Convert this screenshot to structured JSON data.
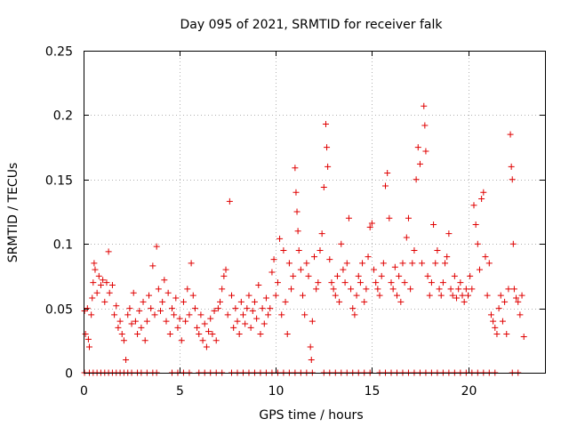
{
  "chart_data": {
    "type": "scatter",
    "title": "Day 095 of 2021, SRMTID for receiver falk",
    "xlabel": "GPS time / hours",
    "ylabel": "SRMTID / TECUs",
    "xlim": [
      0,
      24
    ],
    "ylim": [
      0,
      0.25
    ],
    "x_ticks": [
      0,
      5,
      10,
      15,
      20
    ],
    "x_tick_labels": [
      "0",
      "5",
      "10",
      "15",
      "20"
    ],
    "y_ticks": [
      0,
      0.05,
      0.1,
      0.15,
      0.2,
      0.25
    ],
    "y_tick_labels": [
      "0",
      "0.05",
      "0.1",
      "0.15",
      "0.2",
      "0.25"
    ],
    "grid": true,
    "marker": "+",
    "marker_color": "#e00000",
    "series": [
      {
        "name": "SRMTID",
        "color": "#e00000",
        "points": [
          [
            0.05,
            0.048
          ],
          [
            0.1,
            0.03
          ],
          [
            0.2,
            0.05
          ],
          [
            0.25,
            0.026
          ],
          [
            0.3,
            0.02
          ],
          [
            0.4,
            0.045
          ],
          [
            0.45,
            0.058
          ],
          [
            0.5,
            0.07
          ],
          [
            0.55,
            0.085
          ],
          [
            0.6,
            0.08
          ],
          [
            0.7,
            0.062
          ],
          [
            0.8,
            0.075
          ],
          [
            0.9,
            0.068
          ],
          [
            1.0,
            0.072
          ],
          [
            1.1,
            0.055
          ],
          [
            1.2,
            0.07
          ],
          [
            1.3,
            0.094
          ],
          [
            1.35,
            0.062
          ],
          [
            1.5,
            0.068
          ],
          [
            1.6,
            0.045
          ],
          [
            1.7,
            0.052
          ],
          [
            1.8,
            0.035
          ],
          [
            1.9,
            0.04
          ],
          [
            2.0,
            0.03
          ],
          [
            2.1,
            0.025
          ],
          [
            2.2,
            0.01
          ],
          [
            2.3,
            0.045
          ],
          [
            2.4,
            0.05
          ],
          [
            2.5,
            0.038
          ],
          [
            2.6,
            0.062
          ],
          [
            2.7,
            0.04
          ],
          [
            2.8,
            0.03
          ],
          [
            2.9,
            0.048
          ],
          [
            3.0,
            0.035
          ],
          [
            3.1,
            0.055
          ],
          [
            3.2,
            0.025
          ],
          [
            3.3,
            0.04
          ],
          [
            3.4,
            0.06
          ],
          [
            3.5,
            0.05
          ],
          [
            3.6,
            0.083
          ],
          [
            3.7,
            0.045
          ],
          [
            3.8,
            0.098
          ],
          [
            3.9,
            0.065
          ],
          [
            4.0,
            0.048
          ],
          [
            4.1,
            0.055
          ],
          [
            4.2,
            0.072
          ],
          [
            4.3,
            0.04
          ],
          [
            4.4,
            0.062
          ],
          [
            4.5,
            0.03
          ],
          [
            4.6,
            0.05
          ],
          [
            4.7,
            0.045
          ],
          [
            4.8,
            0.058
          ],
          [
            4.9,
            0.035
          ],
          [
            5.0,
            0.042
          ],
          [
            5.1,
            0.025
          ],
          [
            5.2,
            0.055
          ],
          [
            5.3,
            0.04
          ],
          [
            5.4,
            0.065
          ],
          [
            5.5,
            0.045
          ],
          [
            5.6,
            0.085
          ],
          [
            5.7,
            0.06
          ],
          [
            5.8,
            0.05
          ],
          [
            5.9,
            0.035
          ],
          [
            6.0,
            0.03
          ],
          [
            6.1,
            0.045
          ],
          [
            6.2,
            0.025
          ],
          [
            6.3,
            0.038
          ],
          [
            6.4,
            0.02
          ],
          [
            6.5,
            0.032
          ],
          [
            6.6,
            0.042
          ],
          [
            6.7,
            0.03
          ],
          [
            6.8,
            0.048
          ],
          [
            6.9,
            0.025
          ],
          [
            7.0,
            0.05
          ],
          [
            7.1,
            0.055
          ],
          [
            7.2,
            0.065
          ],
          [
            7.3,
            0.075
          ],
          [
            7.4,
            0.08
          ],
          [
            7.5,
            0.045
          ],
          [
            7.6,
            0.133
          ],
          [
            7.7,
            0.06
          ],
          [
            7.8,
            0.035
          ],
          [
            7.9,
            0.05
          ],
          [
            8.0,
            0.04
          ],
          [
            8.1,
            0.03
          ],
          [
            8.2,
            0.055
          ],
          [
            8.3,
            0.045
          ],
          [
            8.4,
            0.038
          ],
          [
            8.5,
            0.05
          ],
          [
            8.6,
            0.06
          ],
          [
            8.7,
            0.035
          ],
          [
            8.8,
            0.048
          ],
          [
            8.9,
            0.055
          ],
          [
            9.0,
            0.042
          ],
          [
            9.1,
            0.068
          ],
          [
            9.2,
            0.03
          ],
          [
            9.3,
            0.05
          ],
          [
            9.4,
            0.038
          ],
          [
            9.5,
            0.058
          ],
          [
            9.6,
            0.045
          ],
          [
            9.7,
            0.05
          ],
          [
            9.8,
            0.078
          ],
          [
            9.9,
            0.088
          ],
          [
            10.0,
            0.06
          ],
          [
            10.1,
            0.07
          ],
          [
            10.2,
            0.104
          ],
          [
            10.3,
            0.045
          ],
          [
            10.4,
            0.095
          ],
          [
            10.5,
            0.055
          ],
          [
            10.6,
            0.03
          ],
          [
            10.7,
            0.085
          ],
          [
            10.8,
            0.065
          ],
          [
            10.9,
            0.075
          ],
          [
            11.0,
            0.159
          ],
          [
            11.05,
            0.14
          ],
          [
            11.1,
            0.125
          ],
          [
            11.15,
            0.11
          ],
          [
            11.2,
            0.095
          ],
          [
            11.3,
            0.08
          ],
          [
            11.4,
            0.06
          ],
          [
            11.5,
            0.045
          ],
          [
            11.6,
            0.085
          ],
          [
            11.7,
            0.075
          ],
          [
            11.8,
            0.02
          ],
          [
            11.85,
            0.01
          ],
          [
            11.9,
            0.04
          ],
          [
            12.0,
            0.09
          ],
          [
            12.1,
            0.065
          ],
          [
            12.2,
            0.07
          ],
          [
            12.3,
            0.095
          ],
          [
            12.4,
            0.108
          ],
          [
            12.5,
            0.144
          ],
          [
            12.6,
            0.193
          ],
          [
            12.65,
            0.175
          ],
          [
            12.7,
            0.16
          ],
          [
            12.8,
            0.088
          ],
          [
            12.9,
            0.07
          ],
          [
            13.0,
            0.065
          ],
          [
            13.1,
            0.06
          ],
          [
            13.2,
            0.075
          ],
          [
            13.3,
            0.055
          ],
          [
            13.4,
            0.1
          ],
          [
            13.5,
            0.08
          ],
          [
            13.6,
            0.07
          ],
          [
            13.7,
            0.085
          ],
          [
            13.8,
            0.12
          ],
          [
            13.9,
            0.065
          ],
          [
            14.0,
            0.05
          ],
          [
            14.1,
            0.045
          ],
          [
            14.2,
            0.06
          ],
          [
            14.3,
            0.075
          ],
          [
            14.4,
            0.07
          ],
          [
            14.5,
            0.085
          ],
          [
            14.6,
            0.055
          ],
          [
            14.7,
            0.065
          ],
          [
            14.8,
            0.09
          ],
          [
            14.9,
            0.113
          ],
          [
            15.0,
            0.116
          ],
          [
            15.1,
            0.08
          ],
          [
            15.2,
            0.07
          ],
          [
            15.3,
            0.065
          ],
          [
            15.4,
            0.06
          ],
          [
            15.5,
            0.075
          ],
          [
            15.6,
            0.085
          ],
          [
            15.7,
            0.145
          ],
          [
            15.8,
            0.155
          ],
          [
            15.9,
            0.12
          ],
          [
            16.0,
            0.07
          ],
          [
            16.1,
            0.065
          ],
          [
            16.2,
            0.082
          ],
          [
            16.3,
            0.06
          ],
          [
            16.4,
            0.075
          ],
          [
            16.5,
            0.055
          ],
          [
            16.6,
            0.085
          ],
          [
            16.7,
            0.07
          ],
          [
            16.8,
            0.105
          ],
          [
            16.9,
            0.12
          ],
          [
            17.0,
            0.065
          ],
          [
            17.1,
            0.085
          ],
          [
            17.2,
            0.095
          ],
          [
            17.3,
            0.15
          ],
          [
            17.4,
            0.175
          ],
          [
            17.5,
            0.162
          ],
          [
            17.6,
            0.085
          ],
          [
            17.7,
            0.207
          ],
          [
            17.75,
            0.192
          ],
          [
            17.8,
            0.172
          ],
          [
            17.9,
            0.075
          ],
          [
            18.0,
            0.06
          ],
          [
            18.1,
            0.07
          ],
          [
            18.2,
            0.115
          ],
          [
            18.3,
            0.085
          ],
          [
            18.4,
            0.095
          ],
          [
            18.5,
            0.065
          ],
          [
            18.6,
            0.06
          ],
          [
            18.7,
            0.07
          ],
          [
            18.8,
            0.085
          ],
          [
            18.9,
            0.09
          ],
          [
            19.0,
            0.108
          ],
          [
            19.1,
            0.065
          ],
          [
            19.2,
            0.06
          ],
          [
            19.3,
            0.075
          ],
          [
            19.4,
            0.058
          ],
          [
            19.5,
            0.065
          ],
          [
            19.6,
            0.07
          ],
          [
            19.7,
            0.06
          ],
          [
            19.8,
            0.055
          ],
          [
            19.9,
            0.065
          ],
          [
            20.0,
            0.06
          ],
          [
            20.1,
            0.075
          ],
          [
            20.2,
            0.065
          ],
          [
            20.3,
            0.13
          ],
          [
            20.4,
            0.115
          ],
          [
            20.5,
            0.1
          ],
          [
            20.6,
            0.08
          ],
          [
            20.7,
            0.135
          ],
          [
            20.8,
            0.14
          ],
          [
            20.9,
            0.09
          ],
          [
            21.0,
            0.06
          ],
          [
            21.1,
            0.085
          ],
          [
            21.2,
            0.045
          ],
          [
            21.3,
            0.04
          ],
          [
            21.4,
            0.035
          ],
          [
            21.5,
            0.03
          ],
          [
            21.6,
            0.05
          ],
          [
            21.7,
            0.06
          ],
          [
            21.8,
            0.04
          ],
          [
            21.9,
            0.055
          ],
          [
            22.0,
            0.03
          ],
          [
            22.1,
            0.065
          ],
          [
            22.2,
            0.185
          ],
          [
            22.25,
            0.16
          ],
          [
            22.3,
            0.15
          ],
          [
            22.35,
            0.1
          ],
          [
            22.4,
            0.065
          ],
          [
            22.5,
            0.058
          ],
          [
            22.6,
            0.055
          ],
          [
            22.7,
            0.045
          ],
          [
            22.8,
            0.06
          ],
          [
            22.9,
            0.028
          ]
        ],
        "zero_points": [
          0.05,
          0.3,
          0.5,
          0.7,
          0.9,
          1.1,
          1.3,
          1.5,
          1.7,
          1.9,
          2.1,
          2.3,
          2.5,
          2.8,
          3.0,
          3.3,
          3.6,
          3.8,
          4.6,
          4.9,
          5.2,
          5.5,
          6.0,
          6.3,
          6.6,
          6.9,
          7.2,
          7.7,
          8.0,
          8.3,
          8.6,
          8.9,
          9.2,
          9.5,
          9.8,
          10.1,
          10.4,
          10.7,
          11.0,
          11.3,
          11.6,
          11.9,
          12.5,
          12.8,
          13.1,
          13.4,
          13.7,
          14.0,
          14.3,
          14.6,
          14.9,
          15.4,
          15.7,
          16.0,
          16.3,
          16.6,
          16.9,
          17.2,
          17.5,
          17.8,
          18.1,
          18.4,
          18.7,
          19.0,
          19.3,
          19.6,
          19.9,
          20.2,
          20.5,
          20.8,
          21.1,
          21.4,
          22.3,
          22.6
        ]
      }
    ]
  }
}
